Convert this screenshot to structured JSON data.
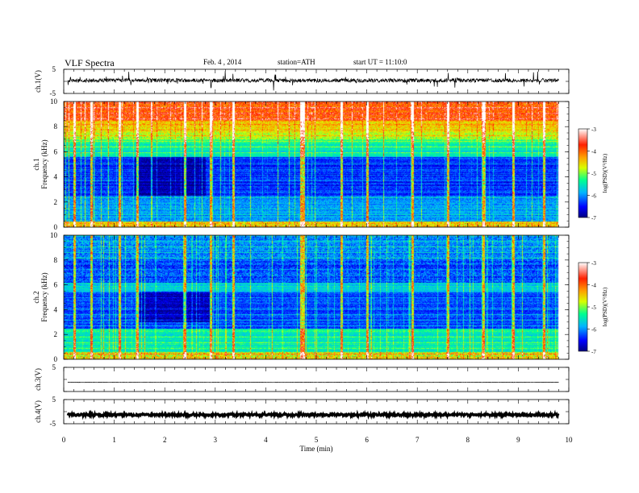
{
  "header": {
    "title": "VLF Spectra",
    "date": "Feb. 4 , 2014",
    "station": "station=ATH",
    "start": "start UT = 11:10:0"
  },
  "chart_data": [
    {
      "type": "line",
      "ylabel": "ch.1(V)",
      "ylim": [
        -5,
        5
      ],
      "yticks": [
        "5",
        "-5"
      ],
      "description_of_values": "waveform centered near 0 V with spikes",
      "grid": false
    },
    {
      "type": "heatmap",
      "ylabel": "ch.1",
      "ylabel2": "Frequency (kHz)",
      "ylim": [
        0,
        10
      ],
      "yticks": [
        "0",
        "2",
        "4",
        "6",
        "8",
        "10"
      ],
      "xlim": [
        0,
        10
      ],
      "colorbar": {
        "label": "log(PSD)(V²/Hz)",
        "ticks": [
          "-3",
          "-4",
          "-5",
          "-6",
          "-7"
        ],
        "range": [
          -7,
          -3
        ],
        "colors": [
          "#000080",
          "#0000ff",
          "#00c0ff",
          "#00ff80",
          "#ffff00",
          "#ff8000",
          "#ff0000",
          "#ffffff"
        ]
      }
    },
    {
      "type": "heatmap",
      "ylabel": "ch.2",
      "ylabel2": "Frequency (kHz)",
      "ylim": [
        0,
        10
      ],
      "yticks": [
        "0",
        "2",
        "4",
        "6",
        "8",
        "10"
      ],
      "xlim": [
        0,
        10
      ],
      "colorbar": {
        "label": "log(PSD)(V²/Hz)",
        "ticks": [
          "-3",
          "-4",
          "-5",
          "-6",
          "-7"
        ],
        "range": [
          -7,
          -3
        ]
      }
    },
    {
      "type": "line",
      "ylabel": "ch.3(V)",
      "ylim": [
        -5,
        5
      ],
      "yticks": [
        "5"
      ],
      "grid": false
    },
    {
      "type": "line",
      "ylabel": "ch.4(V)",
      "ylim": [
        -5,
        5
      ],
      "yticks": [
        "5",
        "-5"
      ],
      "grid": false
    }
  ],
  "xaxis": {
    "label": "Time (min)",
    "xlim": [
      0,
      10
    ],
    "ticks": [
      "0",
      "1",
      "2",
      "3",
      "4",
      "5",
      "6",
      "7",
      "8",
      "9",
      "10"
    ]
  }
}
